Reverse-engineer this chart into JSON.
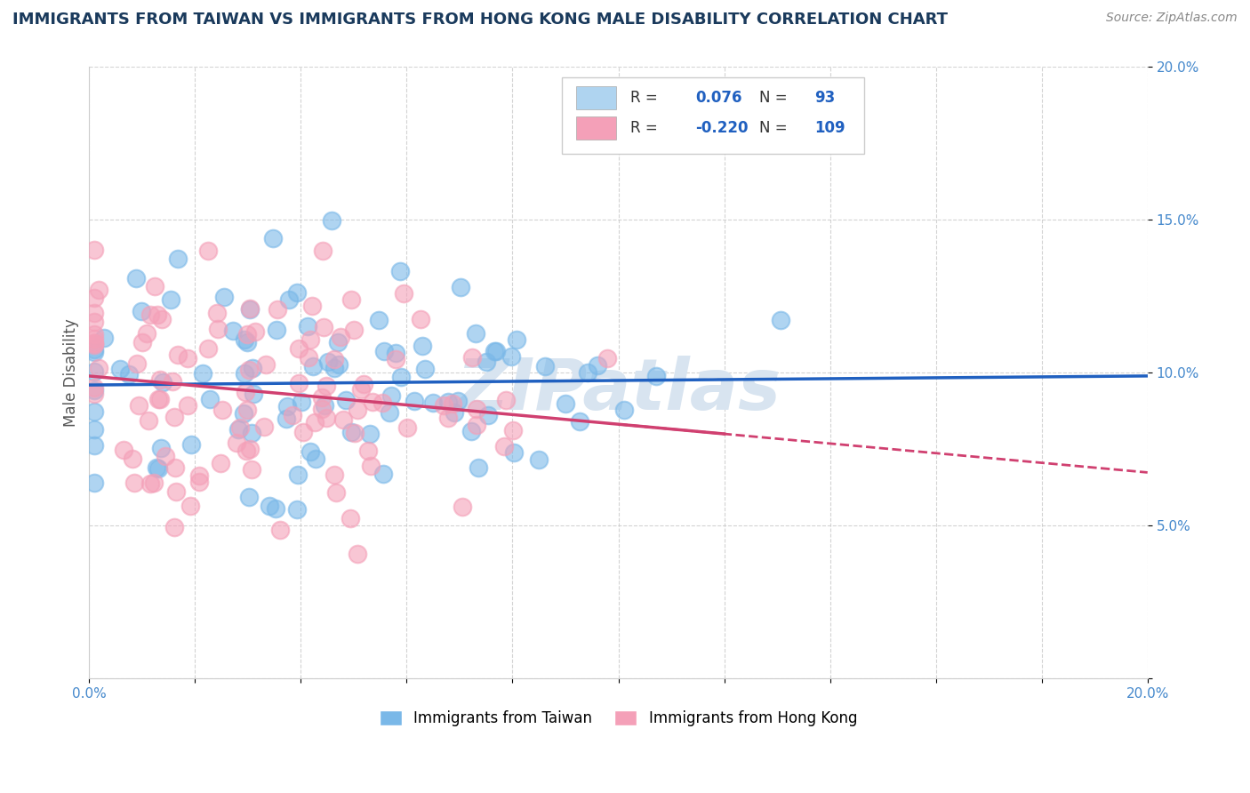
{
  "title": "IMMIGRANTS FROM TAIWAN VS IMMIGRANTS FROM HONG KONG MALE DISABILITY CORRELATION CHART",
  "source": "Source: ZipAtlas.com",
  "ylabel": "Male Disability",
  "xlim": [
    0.0,
    0.2
  ],
  "ylim": [
    0.0,
    0.2
  ],
  "taiwan_R": 0.076,
  "taiwan_N": 93,
  "hongkong_R": -0.22,
  "hongkong_N": 109,
  "taiwan_color": "#7ab8e8",
  "taiwan_color_light": "#afd4f0",
  "hongkong_color": "#f4a0b8",
  "trend_taiwan_color": "#2060c0",
  "trend_hongkong_color": "#d04070",
  "watermark": "ZIPatlas",
  "watermark_color": "#d8e4f0",
  "legend_label_taiwan": "Immigrants from Taiwan",
  "legend_label_hongkong": "Immigrants from Hong Kong",
  "background_color": "#ffffff",
  "grid_color": "#c8c8c8",
  "title_color": "#1a3a5c",
  "source_color": "#888888",
  "tick_color": "#4488cc",
  "axis_label_color": "#555555"
}
